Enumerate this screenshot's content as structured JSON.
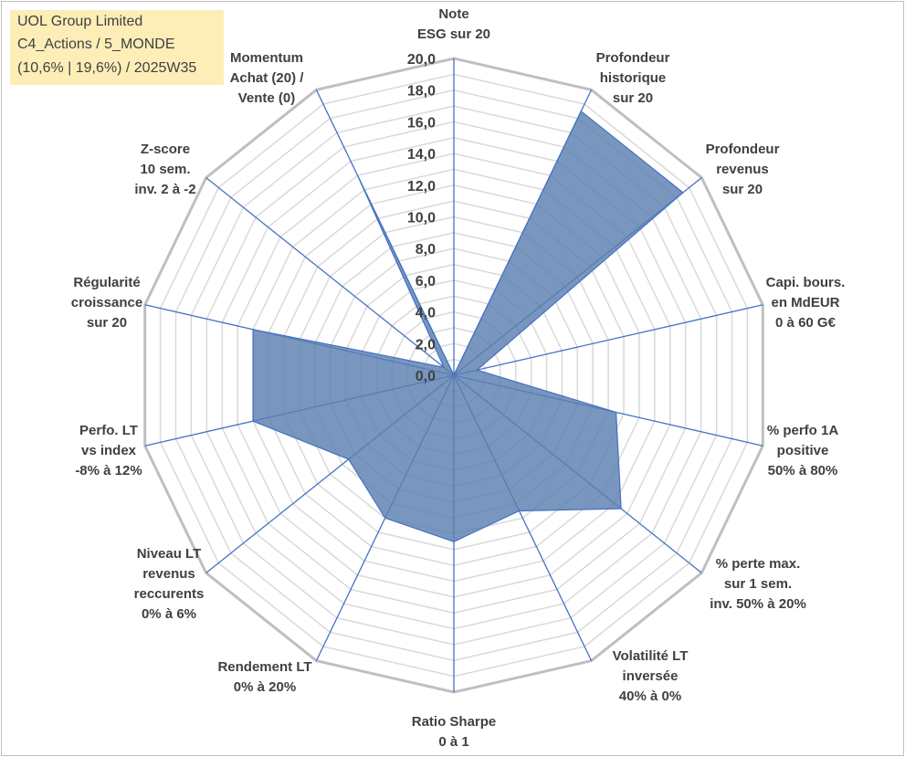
{
  "title": {
    "line1": "UOL Group Limited",
    "line2": "C4_Actions / 5_MONDE",
    "line3": "(10,6% | 19,6%) / 2025W35"
  },
  "chart_data": {
    "type": "radar",
    "range": [
      0,
      20
    ],
    "tick_step": 2,
    "tick_labels": [
      "0,0",
      "2,0",
      "4,0",
      "6,0",
      "8,0",
      "10,0",
      "12,0",
      "14,0",
      "16,0",
      "18,0",
      "20,0"
    ],
    "grid": true,
    "axes": [
      {
        "label": [
          "Note",
          "ESG sur 20"
        ],
        "value": 0
      },
      {
        "label": [
          "Profondeur",
          "historique",
          "sur 20"
        ],
        "value": 18.5
      },
      {
        "label": [
          "Profondeur",
          "revenus",
          "sur 20"
        ],
        "value": 18.5
      },
      {
        "label": [
          "Capi. bours.",
          "en MdEUR",
          "0 à 60 G€"
        ],
        "value": 1.5
      },
      {
        "label": [
          "% perfo 1A",
          "positive",
          "50% à 80%"
        ],
        "value": 10.5
      },
      {
        "label": [
          "% perte max.",
          "sur 1 sem.",
          "inv. 50% à 20%"
        ],
        "value": 13.5
      },
      {
        "label": [
          "Volatilité LT",
          "inversée",
          "40% à 0%"
        ],
        "value": 9.5
      },
      {
        "label": [
          "Ratio Sharpe",
          "0 à 1"
        ],
        "value": 10.5
      },
      {
        "label": [
          "Rendement LT",
          "0% à 20%"
        ],
        "value": 10.0
      },
      {
        "label": [
          "Niveau LT",
          "revenus",
          "reccurents",
          "0% à 6%"
        ],
        "value": 8.5
      },
      {
        "label": [
          "Perfo. LT",
          "vs index",
          "-8% à 12%"
        ],
        "value": 13.0
      },
      {
        "label": [
          "Régularité",
          "croissance",
          "sur 20"
        ],
        "value": 13.0
      },
      {
        "label": [
          "Z-score",
          "10 sem.",
          "inv. 2 à -2"
        ],
        "value": 0.8
      },
      {
        "label": [
          "Momentum",
          "Achat (20) /",
          "Vente (0)"
        ],
        "value": 14.0
      }
    ],
    "colors": {
      "fill": "#5b7fb0",
      "stroke": "#4472c4",
      "spoke": "#4472c4",
      "grid_major": "#bfbfbf",
      "grid_minor": "#d9d9d9"
    }
  }
}
